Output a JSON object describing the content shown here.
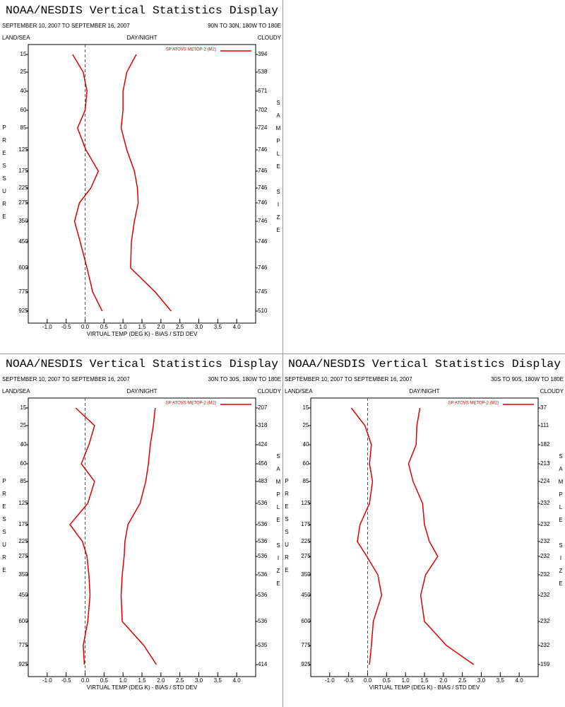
{
  "chart_data": [
    {
      "type": "line",
      "title": "NOAA/NESDIS Vertical Statistics Display",
      "subtitle": "SEPTEMBER 10, 2007 TO SEPTEMBER 16, 2007",
      "region": "90N TO 30N, 180W TO 180E",
      "corner_labels": {
        "left": "LAND/SEA",
        "center": "DAY/NIGHT",
        "right": "CLOUDY"
      },
      "y_label": "PRESSURE",
      "y2_label": "SAMPLE SIZE",
      "x_label": "VIRTUAL TEMP (DEG K) - BIAS / STD DEV",
      "categories": [
        "15",
        "25",
        "40",
        "60",
        "85",
        "125",
        "175",
        "225",
        "275",
        "350",
        "450",
        "600",
        "775",
        "925"
      ],
      "sample_size": [
        394,
        538,
        671,
        702,
        724,
        746,
        746,
        746,
        746,
        746,
        746,
        746,
        745,
        510
      ],
      "series": [
        {
          "name": "SP ATOVS METOP-2 (M2)",
          "color": "#dd0000",
          "values": [
            -0.33,
            -0.05,
            0.05,
            0.0,
            -0.2,
            0.02,
            0.35,
            0.15,
            -0.15,
            -0.28,
            -0.13,
            0.05,
            0.2,
            0.45
          ]
        },
        {
          "color": "#dd0000",
          "values": [
            1.35,
            1.1,
            1.0,
            1.0,
            0.95,
            1.1,
            1.3,
            1.38,
            1.4,
            1.3,
            1.22,
            1.2,
            1.85,
            2.27
          ]
        }
      ],
      "xlim": [
        -1.5,
        4.5
      ],
      "xticks": [
        {
          "value": -1,
          "label": "-1.0"
        },
        {
          "value": -0.5,
          "label": "-0.5"
        },
        {
          "value": 0,
          "label": "0.0"
        },
        {
          "value": 0.5,
          "label": "0.5"
        },
        {
          "value": 1,
          "label": "1.0"
        },
        {
          "value": 1.5,
          "label": "1.5"
        },
        {
          "value": 2,
          "label": "2.0"
        },
        {
          "value": 2.5,
          "label": "2.5"
        },
        {
          "value": 3,
          "label": "3.0"
        },
        {
          "value": 3.5,
          "label": "3.5"
        },
        {
          "value": 4,
          "label": "4.0"
        }
      ],
      "legend": "top-right"
    },
    {
      "type": "line",
      "title": "NOAA/NESDIS Vertical Statistics Display",
      "subtitle": "SEPTEMBER 10, 2007 TO SEPTEMBER 16, 2007",
      "region": "30N TO 30S, 180W TO 180E",
      "corner_labels": {
        "left": "LAND/SEA",
        "center": "DAY/NIGHT",
        "right": "CLOUDY"
      },
      "y_label": "PRESSURE",
      "y2_label": "SAMPLE SIZE",
      "x_label": "VIRTUAL TEMP (DEG K) - BIAS / STD DEV",
      "categories": [
        "15",
        "25",
        "40",
        "60",
        "85",
        "125",
        "175",
        "225",
        "275",
        "350",
        "450",
        "600",
        "775",
        "925"
      ],
      "sample_size": [
        207,
        318,
        424,
        456,
        483,
        536,
        536,
        536,
        536,
        536,
        536,
        536,
        535,
        414
      ],
      "series": [
        {
          "name": "SP ATOVS METOP-2 (M2)",
          "color": "#dd0000",
          "values": [
            -0.25,
            0.25,
            0.1,
            -0.1,
            0.25,
            0.07,
            -0.4,
            -0.07,
            0.05,
            0.1,
            0.13,
            0.07,
            -0.05,
            -0.02
          ]
        },
        {
          "color": "#dd0000",
          "values": [
            1.85,
            1.8,
            1.72,
            1.67,
            1.6,
            1.45,
            1.13,
            1.05,
            1.03,
            0.98,
            0.95,
            0.98,
            1.55,
            1.88
          ]
        }
      ],
      "xlim": [
        -1.5,
        4.5
      ],
      "xticks": [
        {
          "value": -1,
          "label": "-1.0"
        },
        {
          "value": -0.5,
          "label": "-0.5"
        },
        {
          "value": 0,
          "label": "0.0"
        },
        {
          "value": 0.5,
          "label": "0.5"
        },
        {
          "value": 1,
          "label": "1.0"
        },
        {
          "value": 1.5,
          "label": "1.5"
        },
        {
          "value": 2,
          "label": "2.0"
        },
        {
          "value": 2.5,
          "label": "2.5"
        },
        {
          "value": 3,
          "label": "3.0"
        },
        {
          "value": 3.5,
          "label": "3.5"
        },
        {
          "value": 4,
          "label": "4.0"
        }
      ],
      "legend": "top-right"
    },
    {
      "type": "line",
      "title": "NOAA/NESDIS Vertical Statistics Display",
      "subtitle": "SEPTEMBER 10, 2007 TO SEPTEMBER 16, 2007",
      "region": "30S TO 90S, 180W TO 180E",
      "corner_labels": {
        "left": "LAND/SEA",
        "center": "DAY/NIGHT",
        "right": "CLOUDY"
      },
      "y_label": "PRESSURE",
      "y2_label": "SAMPLE SIZE",
      "x_label": "VIRTUAL TEMP (DEG K) - BIAS / STD DEV",
      "categories": [
        "15",
        "25",
        "40",
        "60",
        "85",
        "125",
        "175",
        "225",
        "275",
        "350",
        "450",
        "600",
        "775",
        "925"
      ],
      "sample_size": [
        37,
        111,
        182,
        213,
        224,
        232,
        232,
        232,
        232,
        232,
        232,
        232,
        232,
        159
      ],
      "series": [
        {
          "name": "SP ATOVS METOP-2 (M2)",
          "color": "#dd0000",
          "values": [
            -0.43,
            -0.07,
            0.1,
            0.05,
            0.13,
            0.05,
            -0.2,
            -0.27,
            -0.02,
            0.27,
            0.37,
            0.15,
            0.1,
            0.05
          ]
        },
        {
          "color": "#dd0000",
          "values": [
            1.38,
            1.3,
            1.28,
            1.08,
            1.2,
            1.45,
            1.5,
            1.63,
            1.85,
            1.53,
            1.4,
            1.5,
            2.08,
            2.8
          ]
        }
      ],
      "xlim": [
        -1.5,
        4.5
      ],
      "xticks": [
        {
          "value": -1,
          "label": "-1.0"
        },
        {
          "value": -0.5,
          "label": "-0.5"
        },
        {
          "value": 0,
          "label": "0.0"
        },
        {
          "value": 0.5,
          "label": "0.5"
        },
        {
          "value": 1,
          "label": "1.0"
        },
        {
          "value": 1.5,
          "label": "1.5"
        },
        {
          "value": 2,
          "label": "2.0"
        },
        {
          "value": 2.5,
          "label": "2.5"
        },
        {
          "value": 3,
          "label": "3.0"
        },
        {
          "value": 3.5,
          "label": "3.5"
        },
        {
          "value": 4,
          "label": "4.0"
        }
      ],
      "legend": "top-right"
    }
  ]
}
